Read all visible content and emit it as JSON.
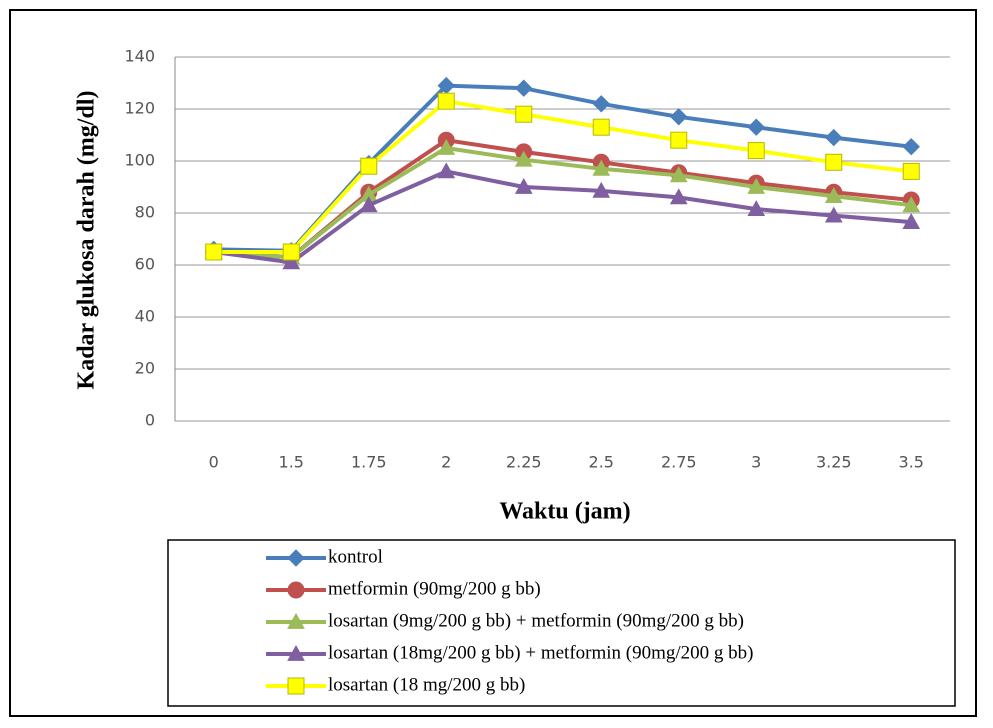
{
  "chart_data": {
    "type": "line",
    "y_label": "Kadar glukosa darah (mg/dl)",
    "x_label": "Waktu (jam)",
    "categories": [
      "0",
      "1.5",
      "1.75",
      "2",
      "2.25",
      "2.5",
      "2.75",
      "3",
      "3.25",
      "3.5"
    ],
    "ylim": [
      0,
      140
    ],
    "yticks": [
      0,
      20,
      40,
      60,
      80,
      100,
      120,
      140
    ],
    "grid": true,
    "legend": "bottom",
    "series": [
      {
        "name": "kontrol",
        "color": "#4a7ebb",
        "marker": "diamond",
        "values": [
          66,
          65.5,
          99,
          129,
          128,
          122,
          117,
          113,
          109,
          105.5
        ]
      },
      {
        "name": "metformin (90mg/200 g bb)",
        "color": "#c0504d",
        "marker": "circle",
        "values": [
          65,
          63,
          88,
          108,
          103.5,
          99.5,
          95.5,
          91.5,
          88,
          85
        ]
      },
      {
        "name": "losartan (9mg/200 g bb) + metformin (90mg/200 g bb)",
        "color": "#9bbb59",
        "marker": "triangle",
        "values": [
          65,
          63,
          87,
          105,
          100.5,
          97,
          94.5,
          90,
          86.5,
          83
        ]
      },
      {
        "name": "losartan (18mg/200 g bb) + metformin (90mg/200 g bb)",
        "color": "#7f5fa0",
        "marker": "triangle",
        "values": [
          65,
          61,
          83,
          96,
          90,
          88.5,
          86,
          81.5,
          79,
          76.5
        ]
      },
      {
        "name": "losartan (18 mg/200 g bb)",
        "color": "#ffff00",
        "marker": "square",
        "values": [
          65,
          65,
          98,
          123,
          118,
          113,
          108,
          104,
          99.5,
          96
        ]
      }
    ]
  }
}
